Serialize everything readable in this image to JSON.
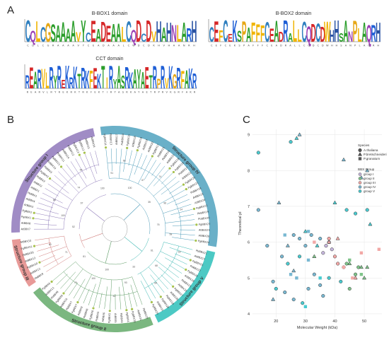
{
  "panels": {
    "a": {
      "letter": "A"
    },
    "b": {
      "letter": "B"
    },
    "c": {
      "letter": "C"
    }
  },
  "logos": [
    {
      "title": "B-BOX1 domain",
      "sequence": "CQLCGSAAAAVYCEADEAALCQDCDVHAHNLARH",
      "axis_seq": "CDLCGRAAAAVYCEADAAALCWDCDKHVHAANRH"
    },
    {
      "title": "B-BOX2 domain",
      "sequence": "CEFCEKSPAFFFCEADRALLCQDCDWHHSANPLAQRH",
      "axis_seq": "CEFCEKSPAFFFCEADRALLCQDCDWHHSANPLAQRH"
    },
    {
      "title": "CCT domain",
      "sequence": "REARVLRYREKRKTRKFEKTIRYASRKAYAETRPRVKGRFAKR",
      "axis_seq": "REARVLRYREKRKTRKFEKTIRYASRKAYAETRPRVKGRFAKR"
    }
  ],
  "logo_colors": {
    "C": "#2f7fbf",
    "A": "#2a9d2a",
    "G": "#e6a817",
    "H": "#2952a3",
    "D": "#d62728",
    "E": "#d62728",
    "R": "#1f5fd6",
    "K": "#1f5fd6",
    "Q": "#9b3fb5",
    "N": "#9b3fb5",
    "S": "#2a9d2a",
    "T": "#2a9d2a",
    "Y": "#2a9d2a",
    "F": "#f0b400",
    "L": "#f0b400",
    "V": "#f0b400",
    "I": "#f0b400",
    "W": "#f0b400",
    "P": "#e6a817",
    "M": "#f0b400"
  },
  "tree": {
    "groups": [
      {
        "name": "Structure group I",
        "color": "#a08cc5"
      },
      {
        "name": "Structure group IV",
        "color": "#6ab0c8"
      },
      {
        "name": "Structure group V",
        "color": "#4cc9c4"
      },
      {
        "name": "Structure group II",
        "color": "#7bb780"
      },
      {
        "name": "Structure group III",
        "color": "#e89a98"
      }
    ],
    "leaves": [
      "AtBBX7",
      "AtBBX8",
      "PgBBX1",
      "PgBBX2",
      "AtBBX3",
      "AtBBX4",
      "PbBBX1",
      "AtBBX1",
      "AtBBX2",
      "PbBBX2",
      "PgBBX3",
      "PbBBX3",
      "PbBBX10",
      "PgBBX11",
      "PbBBX11",
      "AtBBX14",
      "PbBBX12",
      "PgBBX13",
      "PgBBX12",
      "AtBBX15",
      "AtBBX16",
      "PgBBX14",
      "PbBBX13",
      "AtBBX17",
      "PbBBX14",
      "PgBBX15",
      "AtBBX18",
      "PgBBX16",
      "AtBBX19",
      "AtBBX20",
      "PgBBX17",
      "PbBBX15",
      "PbBBX16",
      "AtBBX21",
      "PgBBX18",
      "PgBBX19",
      "PbBBX17",
      "AtBBX22",
      "PgBBX20",
      "PgBBX21",
      "PbBBX18",
      "AtBBX23",
      "AtBBX24",
      "PgBBX22",
      "PbBBX19",
      "PbBBX20",
      "PgBBX23",
      "AtBBX25",
      "AtBBX26",
      "PgBBX24",
      "PbBBX21",
      "AtBBX27",
      "PgBBX25",
      "PbBBX22",
      "PgBBX26",
      "AtBBX28",
      "PbBBX23",
      "AtBBX29",
      "PgBBX27",
      "AtBBX30",
      "PbBBX24",
      "PgBBX28",
      "AtBBX31",
      "PgBBX29",
      "PbBBX25",
      "AtBBX32",
      "PgBBX30",
      "PgBBX4",
      "PbBBX4",
      "AtBBX5",
      "PgBBX5",
      "AtBBX6",
      "PbBBX5",
      "PgBBX6",
      "PbBBX6",
      "AtBBX9",
      "PgBBX7",
      "PbBBX7",
      "AtBBX10",
      "PgBBX8",
      "PbBBX8",
      "AtBBX11",
      "PgBBX9",
      "PbBBX9",
      "AtBBX12",
      "PgBBX10",
      "AtBBX13",
      "PbBBX26",
      "PgBBX31",
      "AtBBX33"
    ],
    "bootstrap": [
      "52",
      "100",
      "88",
      "97",
      "74",
      "99",
      "100",
      "91",
      "66",
      "100",
      "67",
      "74",
      "35",
      "96",
      "24",
      "76",
      "58",
      "60",
      "61",
      "68",
      "89",
      "33",
      "93",
      "42",
      "100",
      "100",
      "79",
      "81",
      "71",
      "60"
    ]
  },
  "scatter": {
    "x_label": "Molecular Weight (kDa)",
    "y_label": "Theoretical pI",
    "x_ticks": [
      "20",
      "30",
      "40",
      "50"
    ],
    "y_ticks": [
      "4",
      "5",
      "6",
      "7",
      "8",
      "9"
    ],
    "legend_species_title": "Species",
    "legend_group_title": "BBX Group",
    "species": [
      "A.thaliana",
      "P.bretschneideri",
      "P.granatum"
    ],
    "groups": [
      "group I",
      "group II",
      "group III",
      "group IV",
      "group V"
    ]
  },
  "chart_data": {
    "type": "scatter",
    "xlabel": "Molecular Weight (kDa)",
    "ylabel": "Theoretical pI",
    "xlim": [
      12,
      56
    ],
    "ylim": [
      3.9,
      9.15
    ],
    "series": [
      {
        "name": "A.thaliana / group I",
        "marker": "circle",
        "color": "#c5b6dd",
        "points": [
          [
            37,
            5.9
          ],
          [
            38,
            6.0
          ],
          [
            39,
            5.8
          ],
          [
            36,
            5.7
          ]
        ]
      },
      {
        "name": "A.thaliana / group II",
        "marker": "circle",
        "color": "#7fc48a",
        "points": [
          [
            43,
            5.3
          ],
          [
            44,
            5.4
          ],
          [
            47,
            5.1
          ],
          [
            48,
            5.3
          ],
          [
            45,
            4.7
          ]
        ]
      },
      {
        "name": "A.thaliana / group III",
        "marker": "circle",
        "color": "#f2a8a6",
        "points": [
          [
            38,
            6.1
          ],
          [
            40,
            5.6
          ],
          [
            41,
            5.4
          ]
        ]
      },
      {
        "name": "A.thaliana / group IV",
        "marker": "circle",
        "color": "#79b8d2",
        "points": [
          [
            14,
            6.9
          ],
          [
            17,
            5.9
          ],
          [
            19,
            4.9
          ],
          [
            22,
            5.6
          ],
          [
            26,
            6.2
          ],
          [
            28,
            6.1
          ],
          [
            30,
            5.9
          ],
          [
            32,
            6.2
          ],
          [
            35,
            6.1
          ],
          [
            23,
            4.6
          ],
          [
            26,
            4.4
          ],
          [
            31,
            4.7
          ],
          [
            33,
            5.1
          ],
          [
            36,
            4.5
          ],
          [
            35,
            4.8
          ]
        ]
      },
      {
        "name": "A.thaliana / group V",
        "marker": "circle",
        "color": "#49cbd0",
        "points": [
          [
            14,
            8.5
          ],
          [
            25,
            8.8
          ],
          [
            20,
            4.7
          ],
          [
            24,
            5.4
          ],
          [
            28,
            5.6
          ],
          [
            38,
            5.0
          ],
          [
            42,
            4.9
          ],
          [
            44,
            6.9
          ],
          [
            47,
            6.8
          ],
          [
            51,
            6.9
          ],
          [
            29,
            4.3
          ]
        ]
      },
      {
        "name": "P.bretschneideri / group II",
        "marker": "triangle",
        "color": "#7fc48a",
        "points": [
          [
            33,
            5.6
          ],
          [
            45,
            5.4
          ],
          [
            49,
            5.3
          ],
          [
            50,
            5.0
          ],
          [
            51,
            5.3
          ]
        ]
      },
      {
        "name": "P.bretschneideri / group III",
        "marker": "triangle",
        "color": "#f2a8a6",
        "points": [
          [
            38,
            6.0
          ],
          [
            41,
            6.1
          ],
          [
            47,
            5.0
          ]
        ]
      },
      {
        "name": "P.bretschneideri / group IV",
        "marker": "triangle",
        "color": "#79b8d2",
        "points": [
          [
            21,
            7.1
          ],
          [
            24,
            5.9
          ],
          [
            28,
            9.0
          ],
          [
            49,
            7.8
          ],
          [
            51,
            8.0
          ],
          [
            43,
            8.3
          ],
          [
            19,
            4.4
          ],
          [
            26,
            5.2
          ]
        ]
      },
      {
        "name": "P.bretschneideri / group V",
        "marker": "triangle",
        "color": "#49cbd0",
        "points": [
          [
            27,
            8.9
          ],
          [
            30,
            6.3
          ],
          [
            40,
            7.1
          ],
          [
            52,
            6.5
          ],
          [
            34,
            5.9
          ]
        ]
      },
      {
        "name": "P.granatum / group II",
        "marker": "square",
        "color": "#7fc48a",
        "points": [
          [
            45,
            5.5
          ],
          [
            49,
            5.1
          ]
        ]
      },
      {
        "name": "P.granatum / group III",
        "marker": "square",
        "color": "#f2a8a6",
        "points": [
          [
            33,
            6.0
          ],
          [
            43,
            5.3
          ],
          [
            46,
            5.0
          ],
          [
            49,
            5.7
          ],
          [
            55,
            5.8
          ]
        ]
      },
      {
        "name": "P.granatum / group IV",
        "marker": "square",
        "color": "#79b8d2",
        "points": [
          [
            23,
            6.2
          ],
          [
            31,
            6.3
          ],
          [
            25,
            5.1
          ],
          [
            31,
            5.5
          ],
          [
            27,
            5.0
          ]
        ]
      },
      {
        "name": "P.granatum / group V",
        "marker": "square",
        "color": "#49cbd0",
        "points": [
          [
            35,
            5.0
          ],
          [
            30,
            4.2
          ]
        ]
      }
    ]
  }
}
